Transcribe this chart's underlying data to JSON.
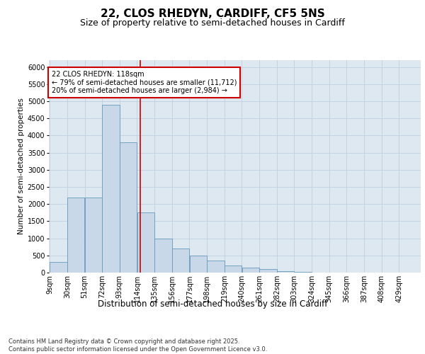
{
  "title1": "22, CLOS RHEDYN, CARDIFF, CF5 5NS",
  "title2": "Size of property relative to semi-detached houses in Cardiff",
  "xlabel": "Distribution of semi-detached houses by size in Cardiff",
  "ylabel": "Number of semi-detached properties",
  "footnote": "Contains HM Land Registry data © Crown copyright and database right 2025.\nContains public sector information licensed under the Open Government Licence v3.0.",
  "bin_labels": [
    "9sqm",
    "30sqm",
    "51sqm",
    "72sqm",
    "93sqm",
    "114sqm",
    "135sqm",
    "156sqm",
    "177sqm",
    "198sqm",
    "219sqm",
    "240sqm",
    "261sqm",
    "282sqm",
    "303sqm",
    "324sqm",
    "345sqm",
    "366sqm",
    "387sqm",
    "408sqm",
    "429sqm"
  ],
  "bin_edges": [
    9,
    30,
    51,
    72,
    93,
    114,
    135,
    156,
    177,
    198,
    219,
    240,
    261,
    282,
    303,
    324,
    345,
    366,
    387,
    408,
    429
  ],
  "bar_heights": [
    300,
    2200,
    2200,
    4900,
    3800,
    1750,
    1000,
    700,
    500,
    350,
    200,
    150,
    100,
    50,
    20,
    10,
    5,
    3,
    2,
    1,
    0
  ],
  "bar_color": "#c8d8e8",
  "bar_edgecolor": "#6699bb",
  "grid_color": "#c0d0e0",
  "bg_color": "#dde8f0",
  "vline_x": 118,
  "vline_color": "#cc0000",
  "annotation_text": "22 CLOS RHEDYN: 118sqm\n← 79% of semi-detached houses are smaller (11,712)\n20% of semi-detached houses are larger (2,984) →",
  "annotation_box_color": "#cc0000",
  "ylim": [
    0,
    6200
  ],
  "yticks": [
    0,
    500,
    1000,
    1500,
    2000,
    2500,
    3000,
    3500,
    4000,
    4500,
    5000,
    5500,
    6000
  ],
  "title1_fontsize": 11,
  "title2_fontsize": 9,
  "xlabel_fontsize": 8.5,
  "ylabel_fontsize": 7.5,
  "tick_fontsize": 7,
  "annot_fontsize": 7,
  "footnote_fontsize": 6
}
